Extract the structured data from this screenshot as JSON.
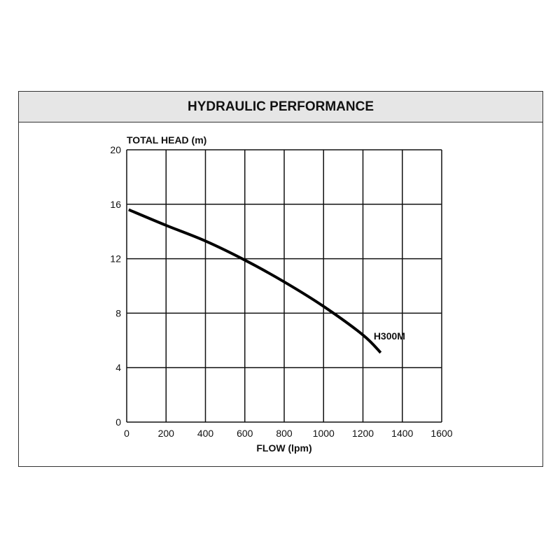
{
  "chart_data": {
    "type": "line",
    "title": "HYDRAULIC PERFORMANCE",
    "xlabel": "FLOW (lpm)",
    "ylabel": "TOTAL HEAD (m)",
    "xlim": [
      0,
      1600
    ],
    "ylim": [
      0,
      20
    ],
    "xticks": [
      0,
      200,
      400,
      600,
      800,
      1000,
      1200,
      1400,
      1600
    ],
    "yticks": [
      0,
      4,
      8,
      12,
      16,
      20
    ],
    "grid": true,
    "series": [
      {
        "name": "H300M",
        "color": "#000000",
        "x": [
          10,
          200,
          400,
          600,
          800,
          1000,
          1200,
          1290
        ],
        "y": [
          15.6,
          14.45,
          13.3,
          11.9,
          10.3,
          8.5,
          6.4,
          5.1
        ]
      }
    ]
  }
}
